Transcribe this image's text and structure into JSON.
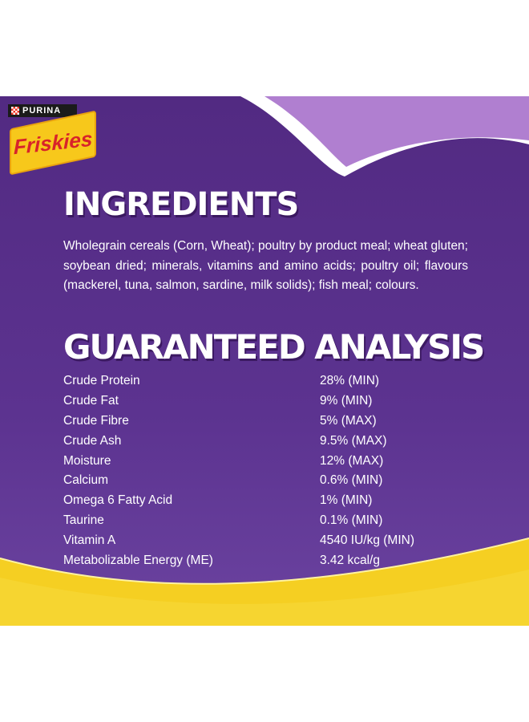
{
  "brand": {
    "parent": "PURINA",
    "name": "Friskies"
  },
  "colors": {
    "purple": "#522a82",
    "lilac": "#b07fd0",
    "yellow": "#f5cf22"
  },
  "ingredients": {
    "title": "INGREDIENTS",
    "text": "Wholegrain cereals (Corn, Wheat); poultry by product meal; wheat gluten; soybean dried; minerals, vitamins and amino acids; poultry oil; flavours (mackerel, tuna, salmon, sardine, milk solids); fish meal; colours."
  },
  "analysis": {
    "title": "GUARANTEED ANALYSIS",
    "rows": [
      {
        "name": "Crude Protein",
        "value": "28% (MIN)"
      },
      {
        "name": "Crude Fat",
        "value": "9% (MIN)"
      },
      {
        "name": "Crude Fibre",
        "value": "5% (MAX)"
      },
      {
        "name": "Crude Ash",
        "value": "9.5% (MAX)"
      },
      {
        "name": "Moisture",
        "value": "12% (MAX)"
      },
      {
        "name": "Calcium",
        "value": "0.6% (MIN)"
      },
      {
        "name": "Omega 6 Fatty Acid",
        "value": "1% (MIN)"
      },
      {
        "name": "Taurine",
        "value": "0.1% (MIN)"
      },
      {
        "name": "Vitamin A",
        "value": "4540 IU/kg (MIN)"
      },
      {
        "name": "Metabolizable Energy (ME)",
        "value": "3.42 kcal/g"
      }
    ]
  }
}
